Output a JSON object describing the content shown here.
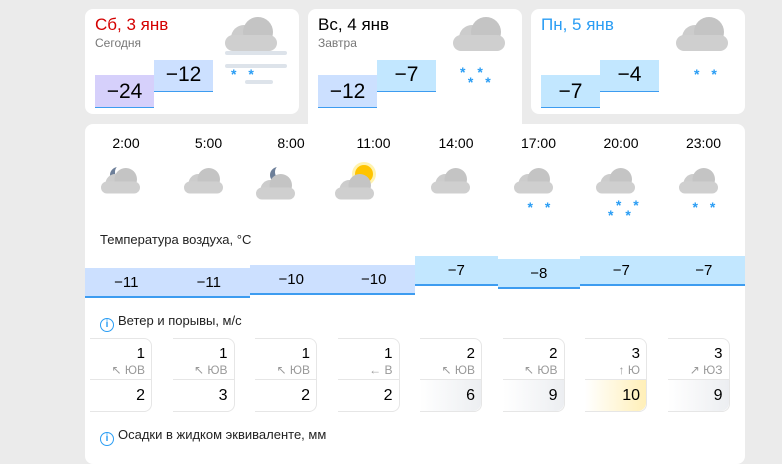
{
  "days": [
    {
      "day": "Сб, 3 янв",
      "sub": "Сегодня",
      "night": "−24",
      "dayt": "−12",
      "day_color": "#d40000",
      "icon": "cloud-fog-snow-icon"
    },
    {
      "day": "Вс, 4 янв",
      "sub": "Завтра",
      "night": "−12",
      "dayt": "−7",
      "day_color": "#000000",
      "icon": "cloud-snow-icon"
    },
    {
      "day": "Пн, 5 янв",
      "sub": "",
      "night": "−7",
      "dayt": "−4",
      "day_color": "#2a9df4",
      "icon": "cloud-light-snow-icon"
    }
  ],
  "hours": [
    {
      "time": "2:00",
      "icon": "cloud-moon-icon",
      "temp": -11,
      "temp_label": "−11",
      "wind": "1",
      "dir": "↖ ЮВ",
      "gust": "2"
    },
    {
      "time": "5:00",
      "icon": "cloud-icon",
      "temp": -11,
      "temp_label": "−11",
      "wind": "1",
      "dir": "↖ ЮВ",
      "gust": "3"
    },
    {
      "time": "8:00",
      "icon": "moon-cloud-icon",
      "temp": -10,
      "temp_label": "−10",
      "wind": "1",
      "dir": "↖ ЮВ",
      "gust": "2"
    },
    {
      "time": "11:00",
      "icon": "sun-cloud-icon",
      "temp": -10,
      "temp_label": "−10",
      "wind": "1",
      "dir": "← В",
      "gust": "2"
    },
    {
      "time": "14:00",
      "icon": "cloud-icon",
      "temp": -7,
      "temp_label": "−7",
      "wind": "2",
      "dir": "↖ ЮВ",
      "gust": "6"
    },
    {
      "time": "17:00",
      "icon": "cloud-light-snow-icon",
      "temp": -8,
      "temp_label": "−8",
      "wind": "2",
      "dir": "↖ ЮВ",
      "gust": "9"
    },
    {
      "time": "20:00",
      "icon": "cloud-snow-icon",
      "temp": -7,
      "temp_label": "−7",
      "wind": "3",
      "dir": "↑ Ю",
      "gust": "10"
    },
    {
      "time": "23:00",
      "icon": "cloud-light-snow-icon",
      "temp": -7,
      "temp_label": "−7",
      "wind": "3",
      "dir": "↗ ЮЗ",
      "gust": "9"
    }
  ],
  "labels": {
    "temp": "Температура воздуха, °C",
    "wind": "Ветер и порывы, м/с",
    "precip": "Осадки в жидком эквиваленте, мм",
    "info": "i"
  }
}
